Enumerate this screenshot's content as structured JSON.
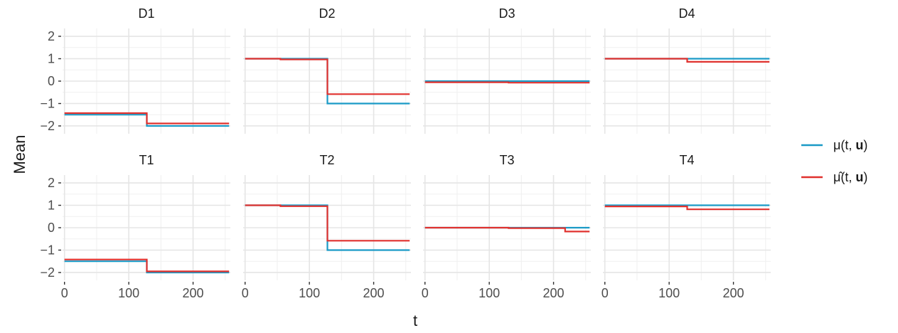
{
  "chart_data": {
    "type": "line",
    "layout": "facet-grid 2x4, step lines, shared axes",
    "xlabel": "t",
    "ylabel": "Mean",
    "xlim": [
      -3,
      258
    ],
    "ylim": [
      -2.35,
      2.35
    ],
    "x_ticks": [
      0,
      100,
      200
    ],
    "x_tick_labels": [
      "0",
      "100",
      "200"
    ],
    "y_ticks": [
      2,
      1,
      0,
      -1,
      -2
    ],
    "y_tick_labels": [
      "2",
      "1",
      "0",
      "−1",
      "−2"
    ],
    "grid": true,
    "legend_position": "right",
    "legend": [
      {
        "key": "mu",
        "label_html": "μ(t, <tspan font-weight=\"bold\">u</tspan>)",
        "color": "#1a9ac6"
      },
      {
        "key": "muhat",
        "label_html": "μ̂(t, <tspan font-weight=\"bold\">u</tspan>)",
        "color": "#e0312e"
      }
    ],
    "panels": [
      {
        "title": "D1",
        "series": [
          {
            "key": "mu",
            "points": [
              [
                0,
                -1.5
              ],
              [
                128,
                -1.5
              ],
              [
                128,
                -2.0
              ],
              [
                256,
                -2.0
              ]
            ]
          },
          {
            "key": "muhat",
            "points": [
              [
                0,
                -1.43
              ],
              [
                128,
                -1.43
              ],
              [
                128,
                -1.89
              ],
              [
                256,
                -1.89
              ]
            ]
          }
        ]
      },
      {
        "title": "D2",
        "series": [
          {
            "key": "mu",
            "points": [
              [
                0,
                1.0
              ],
              [
                128,
                1.0
              ],
              [
                128,
                -1.0
              ],
              [
                256,
                -1.0
              ]
            ]
          },
          {
            "key": "muhat",
            "points": [
              [
                0,
                1.0
              ],
              [
                55,
                1.0
              ],
              [
                55,
                0.97
              ],
              [
                128,
                0.97
              ],
              [
                128,
                -0.58
              ],
              [
                256,
                -0.58
              ]
            ]
          }
        ]
      },
      {
        "title": "D3",
        "series": [
          {
            "key": "mu",
            "points": [
              [
                0,
                0.0
              ],
              [
                256,
                0.0
              ]
            ]
          },
          {
            "key": "muhat",
            "points": [
              [
                0,
                -0.05
              ],
              [
                130,
                -0.05
              ],
              [
                130,
                -0.07
              ],
              [
                256,
                -0.07
              ]
            ]
          }
        ]
      },
      {
        "title": "D4",
        "series": [
          {
            "key": "mu",
            "points": [
              [
                0,
                1.0
              ],
              [
                256,
                1.0
              ]
            ]
          },
          {
            "key": "muhat",
            "points": [
              [
                0,
                1.0
              ],
              [
                128,
                1.0
              ],
              [
                128,
                0.86
              ],
              [
                256,
                0.86
              ]
            ]
          }
        ]
      },
      {
        "title": "T1",
        "series": [
          {
            "key": "mu",
            "points": [
              [
                0,
                -1.5
              ],
              [
                128,
                -1.5
              ],
              [
                128,
                -2.0
              ],
              [
                256,
                -2.0
              ]
            ]
          },
          {
            "key": "muhat",
            "points": [
              [
                0,
                -1.42
              ],
              [
                128,
                -1.42
              ],
              [
                128,
                -1.95
              ],
              [
                256,
                -1.95
              ]
            ]
          }
        ]
      },
      {
        "title": "T2",
        "series": [
          {
            "key": "mu",
            "points": [
              [
                0,
                1.0
              ],
              [
                128,
                1.0
              ],
              [
                128,
                -1.0
              ],
              [
                256,
                -1.0
              ]
            ]
          },
          {
            "key": "muhat",
            "points": [
              [
                0,
                1.0
              ],
              [
                55,
                1.0
              ],
              [
                55,
                0.96
              ],
              [
                128,
                0.96
              ],
              [
                128,
                -0.58
              ],
              [
                256,
                -0.58
              ]
            ]
          }
        ]
      },
      {
        "title": "T3",
        "series": [
          {
            "key": "mu",
            "points": [
              [
                0,
                0.0
              ],
              [
                256,
                0.0
              ]
            ]
          },
          {
            "key": "muhat",
            "points": [
              [
                0,
                0.0
              ],
              [
                130,
                0.0
              ],
              [
                130,
                -0.02
              ],
              [
                218,
                -0.02
              ],
              [
                218,
                -0.17
              ],
              [
                256,
                -0.17
              ]
            ]
          }
        ]
      },
      {
        "title": "T4",
        "series": [
          {
            "key": "mu",
            "points": [
              [
                0,
                1.0
              ],
              [
                256,
                1.0
              ]
            ]
          },
          {
            "key": "muhat",
            "points": [
              [
                0,
                0.95
              ],
              [
                128,
                0.95
              ],
              [
                128,
                0.82
              ],
              [
                256,
                0.82
              ]
            ]
          }
        ]
      }
    ]
  }
}
